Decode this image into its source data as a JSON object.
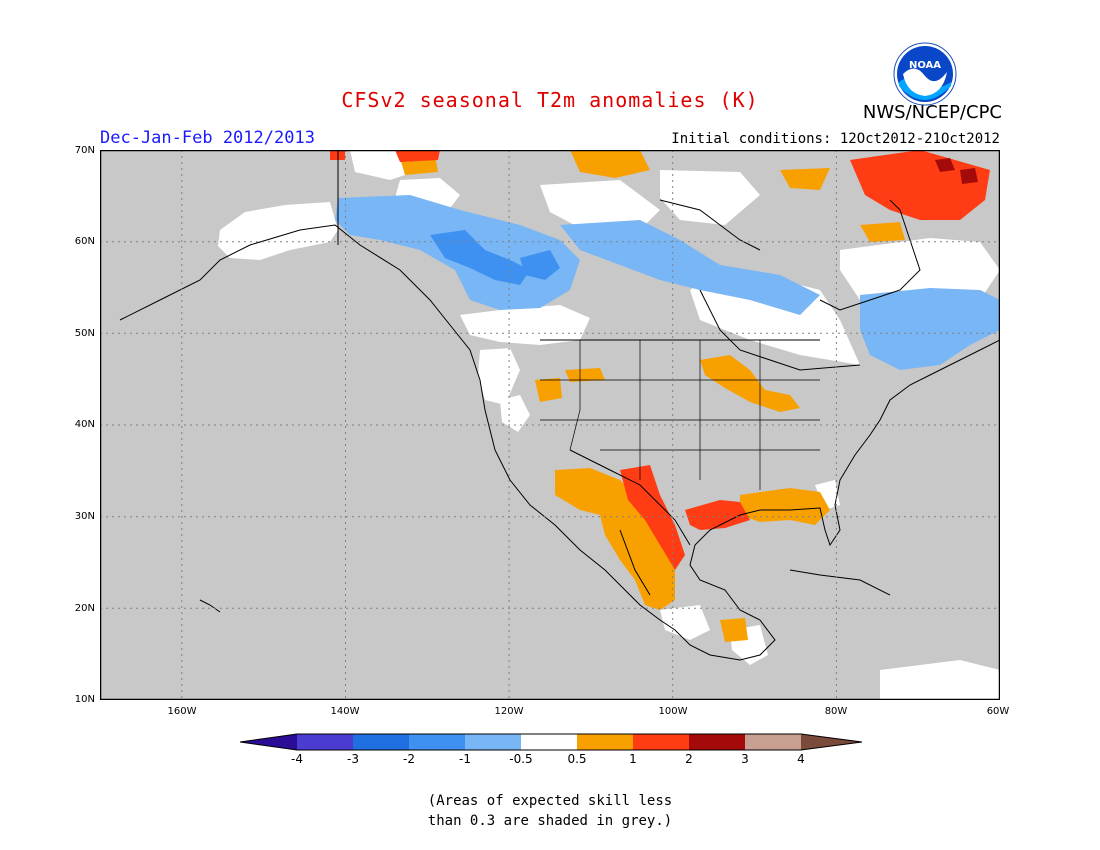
{
  "title": "CFSv2 seasonal T2m anomalies (K)",
  "organization": "NWS/NCEP/CPC",
  "logo_text": "NOAA",
  "season": "Dec-Jan-Feb 2012/2013",
  "initial_conditions": "Initial conditions: 12Oct2012-21Oct2012",
  "lat_labels": [
    "70N",
    "60N",
    "50N",
    "40N",
    "30N",
    "20N",
    "10N"
  ],
  "lon_labels": [
    "160W",
    "140W",
    "120W",
    "100W",
    "80W",
    "60W"
  ],
  "colorbar": {
    "colors": [
      "#2a0c96",
      "#4b3cd0",
      "#1f6fe0",
      "#3e91f0",
      "#78b6f5",
      "#ffffff",
      "#f8a000",
      "#ff3c14",
      "#a50a0a",
      "#c8a092"
    ],
    "left_arrow_color": "#1c0b80",
    "right_arrow_color": "#7a4a3a",
    "tick_labels": [
      "-4",
      "-3",
      "-2",
      "-1",
      "-0.5",
      "0.5",
      "1",
      "2",
      "3",
      "4"
    ]
  },
  "grey_color": "#c8c8c8",
  "note_line1": "(Areas of expected skill less",
  "note_line2": "than 0.3 are shaded in grey.)"
}
